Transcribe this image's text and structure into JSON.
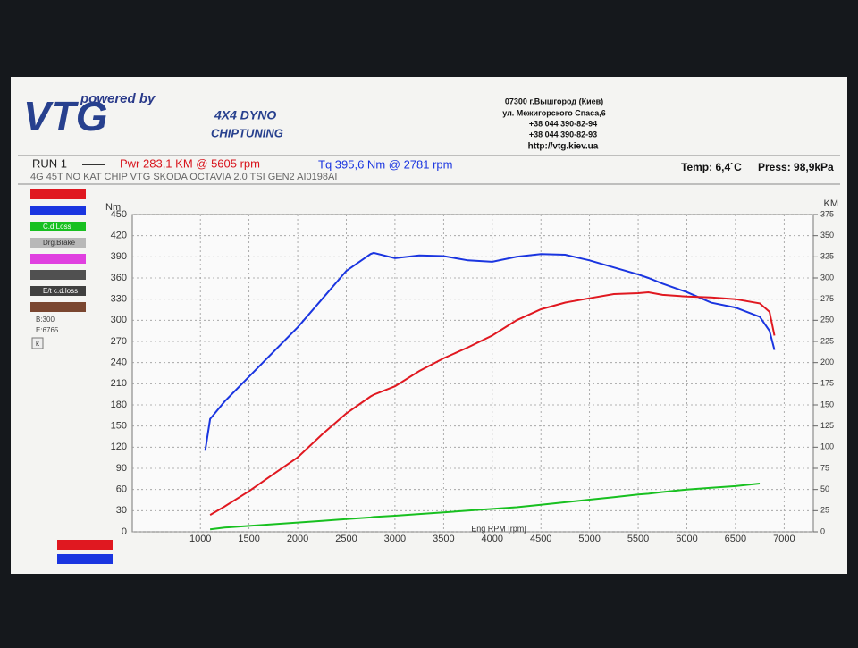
{
  "header": {
    "tagline": "powered by",
    "brand": "VTG",
    "product": "4X4 DYNO",
    "service": "CHIPTUNING",
    "address": [
      "07300 г.Вышгород (Киев)",
      "ул. Межигорского Спаса,6",
      "+38 044 390-82-94",
      "+38 044 390-82-93",
      "http://vtg.kiev.ua"
    ]
  },
  "run": {
    "name": "RUN 1",
    "power": "Pwr  283,1 KM @ 5605 rpm",
    "torque": "Tq  395,6 Nm @ 2781 rpm",
    "temp": "Temp: 6,4`C",
    "pressure": "Press: 98,9kPa",
    "description": "4G 45T  NO KAT CHIP VTG SKODA OCTAVIA 2.0 TSI GEN2 AI0198AI"
  },
  "side_panel": {
    "items": [
      "C.d.Loss",
      "Drg.Brake",
      "E/t c.d.loss"
    ],
    "begin": "B:300",
    "end": "E:6765",
    "button": "k"
  },
  "chart_data": {
    "type": "line",
    "x_label": "Eng RPM [rpm]",
    "y_label": "Nm",
    "y2_label": "KM",
    "grid": true,
    "x": [
      1050,
      1100,
      1250,
      1500,
      1750,
      2000,
      2250,
      2500,
      2750,
      2781,
      3000,
      3250,
      3500,
      3750,
      4000,
      4250,
      4500,
      4750,
      5000,
      5250,
      5500,
      5605,
      5750,
      6000,
      6250,
      6500,
      6750,
      6850,
      6900
    ],
    "xlim": [
      300,
      7300
    ],
    "xticks": [
      1000,
      1500,
      2000,
      2500,
      3000,
      3500,
      4000,
      4500,
      5000,
      5500,
      6000,
      6500,
      7000
    ],
    "ylim": [
      0,
      450
    ],
    "yticks": [
      0,
      30,
      60,
      90,
      120,
      150,
      180,
      210,
      240,
      270,
      300,
      330,
      360,
      390,
      420,
      450
    ],
    "y2lim": [
      0,
      375
    ],
    "y2ticks": [
      0,
      25,
      50,
      75,
      100,
      125,
      150,
      175,
      200,
      225,
      250,
      275,
      300,
      325,
      350,
      375
    ],
    "series": [
      {
        "name": "Tq",
        "color": "#1a35e0",
        "values": [
          115,
          160,
          185,
          220,
          255,
          290,
          330,
          370,
          394,
          395.6,
          388,
          392,
          391,
          385,
          383,
          390,
          394,
          393,
          385,
          375,
          365,
          360,
          352,
          340,
          325,
          318,
          305,
          285,
          258
        ]
      },
      {
        "name": "Pwr",
        "color": "#e01820",
        "axis": "y2",
        "values": [
          null,
          20,
          30,
          48,
          68,
          88,
          115,
          140,
          160,
          162,
          172,
          190,
          205,
          218,
          232,
          250,
          263,
          271,
          276,
          281,
          282,
          283.1,
          280,
          278,
          277,
          275,
          270,
          260,
          232
        ]
      },
      {
        "name": "C.d.Loss",
        "color": "#18c020",
        "axis": "y2",
        "values": [
          null,
          3,
          5,
          7,
          9,
          11,
          13,
          15,
          17,
          17.5,
          19,
          21,
          23,
          25,
          27,
          29,
          32,
          35,
          38,
          41,
          44,
          45,
          47,
          50,
          52,
          54,
          57,
          null,
          null
        ]
      }
    ]
  }
}
